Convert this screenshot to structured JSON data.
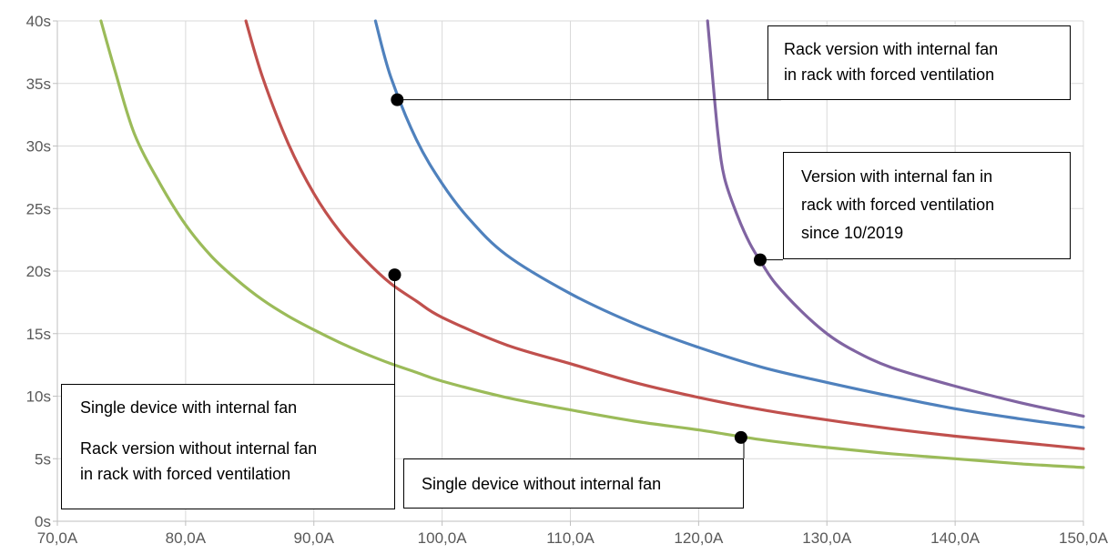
{
  "chart_data": {
    "type": "line",
    "x_unit": "A",
    "y_unit": "s",
    "xlim": [
      70,
      150
    ],
    "ylim": [
      0,
      40
    ],
    "x_ticks": [
      70,
      80,
      90,
      100,
      110,
      120,
      130,
      140,
      150
    ],
    "x_tick_labels": [
      "70,0A",
      "80,0A",
      "90,0A",
      "100,0A",
      "110,0A",
      "120,0A",
      "130,0A",
      "140,0A",
      "150,0A"
    ],
    "y_ticks": [
      0,
      5,
      10,
      15,
      20,
      25,
      30,
      35,
      40
    ],
    "y_tick_labels": [
      "0s",
      "5s",
      "10s",
      "15s",
      "20s",
      "25s",
      "30s",
      "35s",
      "40s"
    ],
    "grid": true,
    "series": [
      {
        "color": "#9BBB59",
        "x": [
          73.4,
          74.5,
          76,
          78,
          80,
          82,
          84,
          86,
          88,
          90,
          92,
          94,
          96,
          98,
          100,
          105,
          110,
          115,
          120,
          125,
          130,
          135,
          140,
          145,
          150
        ],
        "y": [
          40,
          36,
          31,
          27,
          23.7,
          21.2,
          19.3,
          17.7,
          16.4,
          15.3,
          14.3,
          13.4,
          12.6,
          11.9,
          11.2,
          9.9,
          8.9,
          8.0,
          7.3,
          6.5,
          5.9,
          5.4,
          5.0,
          4.6,
          4.3
        ]
      },
      {
        "color": "#C0504D",
        "x": [
          84.7,
          86,
          88,
          90,
          92,
          94,
          96,
          98,
          100,
          105,
          110,
          115,
          120,
          125,
          130,
          135,
          140,
          145,
          150
        ],
        "y": [
          40,
          35.5,
          30.2,
          26.2,
          23.2,
          20.9,
          19.0,
          17.6,
          16.3,
          14.1,
          12.6,
          11.1,
          9.9,
          8.9,
          8.1,
          7.4,
          6.8,
          6.3,
          5.8
        ]
      },
      {
        "color": "#4F81BD",
        "x": [
          94.8,
          96,
          98,
          100,
          102,
          105,
          110,
          115,
          120,
          125,
          130,
          135,
          140,
          145,
          150
        ],
        "y": [
          40,
          35.5,
          30.5,
          27.0,
          24.3,
          21.3,
          18.2,
          15.8,
          13.9,
          12.3,
          11.1,
          10.0,
          9.0,
          8.2,
          7.5
        ]
      },
      {
        "color": "#8064A2",
        "x": [
          120.7,
          121,
          121.5,
          122,
          123,
          124,
          125,
          126,
          128,
          130,
          132,
          135,
          140,
          145,
          150
        ],
        "y": [
          40,
          36.5,
          31.0,
          27.5,
          24.5,
          22.2,
          20.5,
          19.0,
          16.8,
          15.0,
          13.7,
          12.3,
          10.8,
          9.5,
          8.4
        ]
      }
    ],
    "annotations": [
      {
        "lines": [
          "Rack version with internal fan",
          "in rack with forced ventilation"
        ],
        "point": [
          96.5,
          33.7
        ]
      },
      {
        "lines": [
          "Version with internal fan in",
          "rack with forced ventilation",
          "since 10/2019"
        ],
        "point": [
          124.8,
          20.9
        ]
      },
      {
        "lines": [
          "Single device with internal fan",
          "Rack version without internal fan",
          "in rack with forced ventilation"
        ],
        "point": [
          96.3,
          19.7
        ]
      },
      {
        "lines": [
          "Single device without internal fan"
        ],
        "point": [
          123.3,
          6.7
        ]
      }
    ]
  }
}
